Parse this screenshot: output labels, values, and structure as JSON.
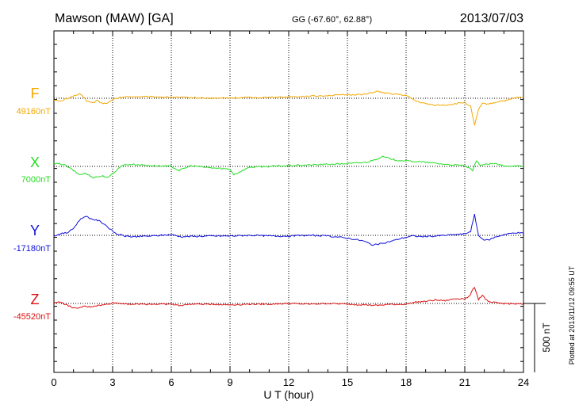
{
  "header": {
    "station": "Mawson (MAW)  [GA]",
    "coords": "GG (-67.60°,  62.88°)",
    "date": "2013/07/03"
  },
  "footer": {
    "plotted": "Plotted at 2013/11/12 09:55 UT"
  },
  "chart_data": {
    "type": "line",
    "xlabel": "U T (hour)",
    "xlim": [
      0,
      24
    ],
    "xticks": [
      0,
      3,
      6,
      9,
      12,
      15,
      18,
      21,
      24
    ],
    "scale_bar": {
      "label": "500 nT",
      "value_nT": 500
    },
    "grid": {
      "vertical": "dotted",
      "baselines": "dotted"
    },
    "series": [
      {
        "name": "F",
        "color": "#f5a800",
        "baseline_label": "49160nT",
        "baseline_nT": 49160,
        "points": [
          [
            0,
            -10
          ],
          [
            0.3,
            -25
          ],
          [
            0.6,
            -5
          ],
          [
            0.9,
            10
          ],
          [
            1.1,
            20
          ],
          [
            1.3,
            30
          ],
          [
            1.5,
            10
          ],
          [
            1.7,
            -20
          ],
          [
            2.0,
            -35
          ],
          [
            2.2,
            -15
          ],
          [
            2.5,
            -40
          ],
          [
            2.8,
            -30
          ],
          [
            3.1,
            -5
          ],
          [
            3.5,
            8
          ],
          [
            4,
            12
          ],
          [
            5,
            10
          ],
          [
            6,
            8
          ],
          [
            6.4,
            5
          ],
          [
            7,
            5
          ],
          [
            8,
            0
          ],
          [
            9,
            2
          ],
          [
            10,
            5
          ],
          [
            11,
            6
          ],
          [
            12,
            10
          ],
          [
            13,
            15
          ],
          [
            14,
            20
          ],
          [
            15,
            25
          ],
          [
            16,
            30
          ],
          [
            16.5,
            50
          ],
          [
            17,
            35
          ],
          [
            17.5,
            30
          ],
          [
            18,
            20
          ],
          [
            18.5,
            -20
          ],
          [
            19,
            -40
          ],
          [
            19.5,
            -50
          ],
          [
            20,
            -50
          ],
          [
            20.5,
            -40
          ],
          [
            21,
            -30
          ],
          [
            21.3,
            -60
          ],
          [
            21.5,
            -200
          ],
          [
            21.7,
            -80
          ],
          [
            21.9,
            -40
          ],
          [
            22.3,
            -40
          ],
          [
            22.8,
            -20
          ],
          [
            23.2,
            -15
          ],
          [
            23.6,
            5
          ],
          [
            24,
            5
          ]
        ]
      },
      {
        "name": "X",
        "color": "#22dd22",
        "baseline_label": "7000nT",
        "baseline_nT": 7000,
        "points": [
          [
            0,
            20
          ],
          [
            0.5,
            15
          ],
          [
            1,
            -30
          ],
          [
            1.3,
            -60
          ],
          [
            1.6,
            -50
          ],
          [
            2,
            -80
          ],
          [
            2.5,
            -70
          ],
          [
            2.8,
            -80
          ],
          [
            3.1,
            -40
          ],
          [
            3.5,
            10
          ],
          [
            4,
            15
          ],
          [
            5,
            5
          ],
          [
            6,
            0
          ],
          [
            6.4,
            -30
          ],
          [
            7,
            5
          ],
          [
            8,
            -10
          ],
          [
            9,
            -20
          ],
          [
            9.2,
            -60
          ],
          [
            10,
            -5
          ],
          [
            11,
            0
          ],
          [
            12,
            5
          ],
          [
            13,
            10
          ],
          [
            14,
            15
          ],
          [
            15,
            20
          ],
          [
            16,
            30
          ],
          [
            16.8,
            70
          ],
          [
            17.5,
            45
          ],
          [
            18,
            40
          ],
          [
            19,
            30
          ],
          [
            20,
            15
          ],
          [
            21,
            5
          ],
          [
            21.4,
            -30
          ],
          [
            21.6,
            40
          ],
          [
            21.8,
            10
          ],
          [
            22.5,
            20
          ],
          [
            23,
            5
          ],
          [
            24,
            0
          ]
        ]
      },
      {
        "name": "Y",
        "color": "#1111dd",
        "baseline_label": "-17180nT",
        "baseline_nT": -17180,
        "points": [
          [
            0,
            -5
          ],
          [
            0.3,
            10
          ],
          [
            0.7,
            20
          ],
          [
            1,
            50
          ],
          [
            1.3,
            110
          ],
          [
            1.6,
            140
          ],
          [
            1.9,
            120
          ],
          [
            2.3,
            105
          ],
          [
            2.6,
            80
          ],
          [
            2.9,
            40
          ],
          [
            3.2,
            10
          ],
          [
            3.6,
            -5
          ],
          [
            4,
            -10
          ],
          [
            5,
            -5
          ],
          [
            6,
            5
          ],
          [
            6.5,
            -10
          ],
          [
            7,
            -8
          ],
          [
            8,
            -5
          ],
          [
            9,
            -5
          ],
          [
            10,
            0
          ],
          [
            11,
            -5
          ],
          [
            12,
            -5
          ],
          [
            13,
            0
          ],
          [
            14,
            -5
          ],
          [
            15,
            -20
          ],
          [
            15.8,
            -40
          ],
          [
            16.3,
            -70
          ],
          [
            16.8,
            -60
          ],
          [
            17.3,
            -40
          ],
          [
            17.8,
            -20
          ],
          [
            18.3,
            -5
          ],
          [
            19,
            -10
          ],
          [
            20,
            0
          ],
          [
            21,
            10
          ],
          [
            21.3,
            30
          ],
          [
            21.5,
            150
          ],
          [
            21.7,
            0
          ],
          [
            21.9,
            -30
          ],
          [
            22.2,
            -35
          ],
          [
            22.6,
            -10
          ],
          [
            23,
            5
          ],
          [
            23.6,
            20
          ],
          [
            24,
            15
          ]
        ]
      },
      {
        "name": "Z",
        "color": "#dd1111",
        "baseline_label": "-45520nT",
        "baseline_nT": -45520,
        "points": [
          [
            0,
            0
          ],
          [
            0.3,
            15
          ],
          [
            0.6,
            -10
          ],
          [
            0.9,
            -25
          ],
          [
            1.2,
            -40
          ],
          [
            1.5,
            -20
          ],
          [
            1.8,
            -25
          ],
          [
            2.2,
            -15
          ],
          [
            2.6,
            -10
          ],
          [
            3,
            5
          ],
          [
            3.5,
            0
          ],
          [
            4,
            -5
          ],
          [
            5,
            -5
          ],
          [
            6,
            -5
          ],
          [
            6.4,
            -15
          ],
          [
            7,
            -5
          ],
          [
            8,
            -5
          ],
          [
            9,
            -10
          ],
          [
            10,
            -5
          ],
          [
            11,
            -5
          ],
          [
            12,
            0
          ],
          [
            13,
            -5
          ],
          [
            14,
            0
          ],
          [
            15,
            -5
          ],
          [
            16,
            -10
          ],
          [
            16.5,
            -15
          ],
          [
            17,
            -8
          ],
          [
            18,
            -5
          ],
          [
            18.5,
            10
          ],
          [
            19,
            15
          ],
          [
            19.5,
            25
          ],
          [
            20,
            20
          ],
          [
            20.5,
            35
          ],
          [
            21,
            35
          ],
          [
            21.2,
            45
          ],
          [
            21.5,
            120
          ],
          [
            21.7,
            30
          ],
          [
            21.9,
            60
          ],
          [
            22.2,
            10
          ],
          [
            22.6,
            5
          ],
          [
            23,
            0
          ],
          [
            24,
            -5
          ]
        ]
      }
    ]
  }
}
